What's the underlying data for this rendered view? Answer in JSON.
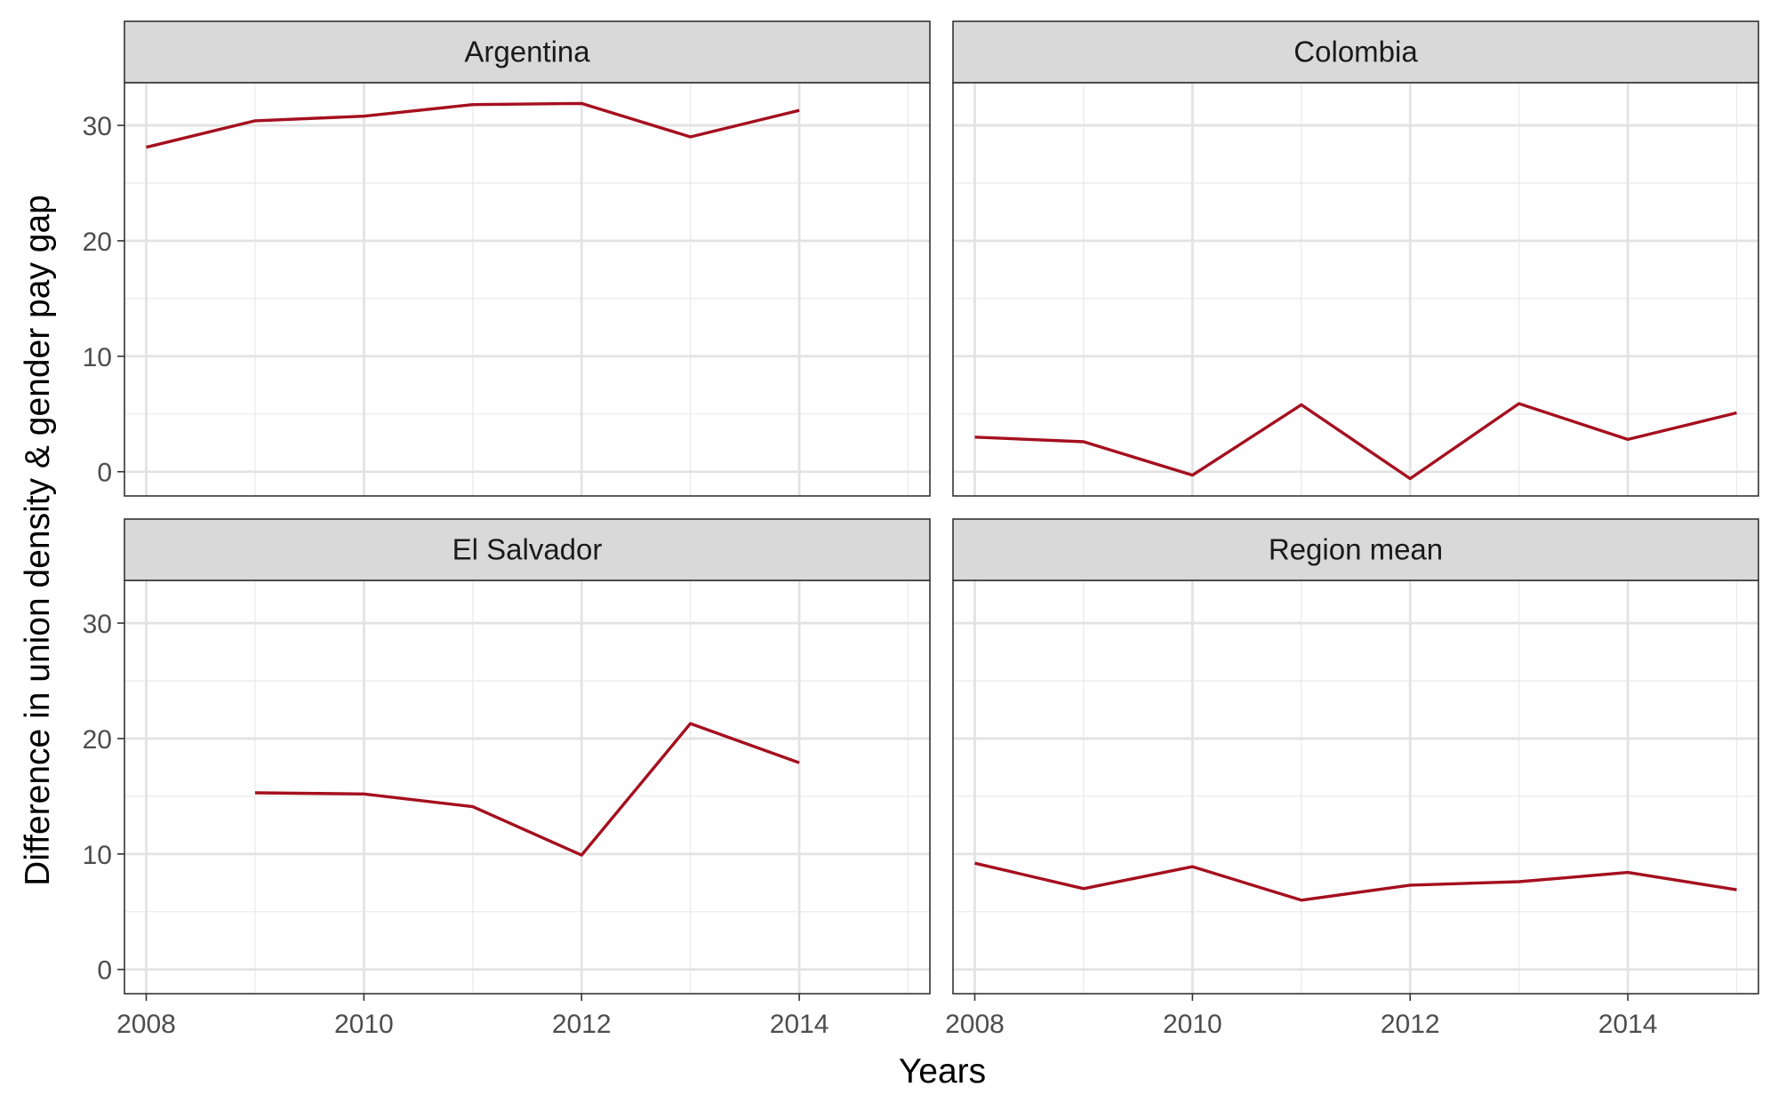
{
  "chart_data": {
    "type": "line",
    "layout": "facet_wrap 2x2",
    "xlabel": "Years",
    "ylabel": "Difference in union density & gender pay gap",
    "xlim": [
      2007.8,
      2015.2
    ],
    "ylim": [
      -2.1,
      33.7
    ],
    "x_ticks": [
      2008,
      2010,
      2012,
      2014
    ],
    "y_ticks": [
      0,
      10,
      20,
      30
    ],
    "grid": true,
    "line_color": "#A50F1E",
    "panels": [
      {
        "label": "Argentina",
        "x": [
          2008,
          2009,
          2010,
          2011,
          2012,
          2013,
          2014
        ],
        "y": [
          28.1,
          30.4,
          30.8,
          31.8,
          31.9,
          29.0,
          31.3
        ]
      },
      {
        "label": "Colombia",
        "x": [
          2008,
          2009,
          2010,
          2011,
          2012,
          2013,
          2014,
          2015
        ],
        "y": [
          3.0,
          2.6,
          -0.3,
          5.8,
          -0.6,
          5.9,
          2.8,
          5.1
        ]
      },
      {
        "label": "El Salvador",
        "x": [
          2009,
          2010,
          2011,
          2012,
          2013,
          2014
        ],
        "y": [
          15.3,
          15.2,
          14.1,
          9.9,
          21.3,
          17.9
        ]
      },
      {
        "label": "Region mean",
        "x": [
          2008,
          2009,
          2010,
          2011,
          2012,
          2013,
          2014,
          2015
        ],
        "y": [
          9.2,
          7.0,
          8.9,
          6.0,
          7.3,
          7.6,
          8.4,
          6.9
        ]
      }
    ]
  }
}
